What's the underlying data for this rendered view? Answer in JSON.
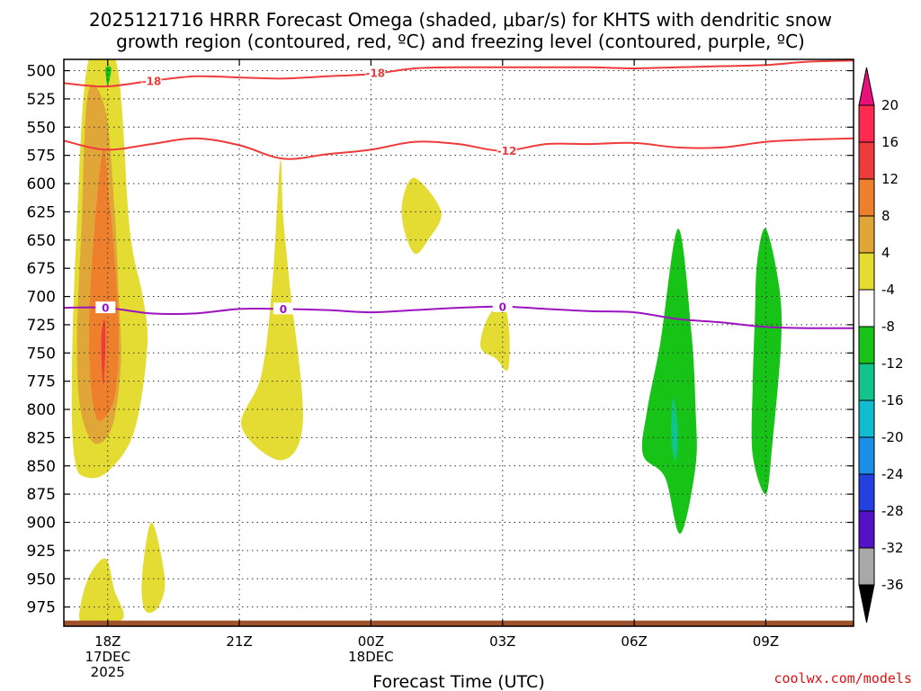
{
  "chart_data": {
    "type": "contour",
    "title_line1": "2025121716 HRRR Forecast Omega (shaded, μbar/s) for KHTS with dendritic snow",
    "title_line2": "growth region (contoured, red, ºC) and freezing level (contoured, purple, ºC)",
    "xlabel": "Forecast Time (UTC)",
    "credit": "coolwx.com/models",
    "credit_color": "#e01010",
    "x_range_hours": [
      -1,
      17
    ],
    "y_range_hpa": [
      992,
      490
    ],
    "y_ticks": [
      500,
      525,
      550,
      575,
      600,
      625,
      650,
      675,
      700,
      725,
      750,
      775,
      800,
      825,
      850,
      875,
      900,
      925,
      950,
      975
    ],
    "x_ticks": [
      {
        "hour": 0,
        "label": "18Z",
        "sub1": "17DEC",
        "sub2": "2025"
      },
      {
        "hour": 3,
        "label": "21Z",
        "sub1": "",
        "sub2": ""
      },
      {
        "hour": 6,
        "label": "00Z",
        "sub1": "18DEC",
        "sub2": ""
      },
      {
        "hour": 9,
        "label": "03Z",
        "sub1": "",
        "sub2": ""
      },
      {
        "hour": 12,
        "label": "06Z",
        "sub1": "",
        "sub2": ""
      },
      {
        "hour": 15,
        "label": "09Z",
        "sub1": "",
        "sub2": ""
      }
    ],
    "colorbar": {
      "labels": [
        "20",
        "16",
        "12",
        "8",
        "4",
        "-4",
        "-8",
        "-12",
        "-16",
        "-20",
        "-24",
        "-28",
        "-32",
        "-36"
      ],
      "colors": [
        "#ff2a4e",
        "#ee3b3b",
        "#ee7f2d",
        "#e0a637",
        "#e4dc32",
        "#ffffff",
        "#16c316",
        "#12c48c",
        "#12bcd0",
        "#1a8fe8",
        "#2440e0",
        "#5312c8",
        "#9412c4",
        "#a8a8a8"
      ],
      "top_color": "#e8107a",
      "bottom_color": "#000000"
    },
    "omega_regions": [
      {
        "name": "omega-plus4-main",
        "color": "#e4dc32",
        "points": [
          [
            -0.45,
            493
          ],
          [
            0.2,
            493
          ],
          [
            0.5,
            640
          ],
          [
            0.8,
            700
          ],
          [
            0.9,
            745
          ],
          [
            0.6,
            820
          ],
          [
            0.0,
            855
          ],
          [
            -0.5,
            860
          ],
          [
            -0.75,
            845
          ],
          [
            -0.82,
            780
          ],
          [
            -0.72,
            650
          ]
        ]
      },
      {
        "name": "omega-plus8-main",
        "color": "#e0a637",
        "points": [
          [
            -0.45,
            520
          ],
          [
            -0.05,
            535
          ],
          [
            0.15,
            620
          ],
          [
            0.25,
            700
          ],
          [
            0.3,
            760
          ],
          [
            0.1,
            815
          ],
          [
            -0.3,
            830
          ],
          [
            -0.62,
            800
          ],
          [
            -0.7,
            740
          ],
          [
            -0.6,
            640
          ]
        ]
      },
      {
        "name": "omega-plus12-main",
        "color": "#ee7f2d",
        "points": [
          [
            -0.1,
            570
          ],
          [
            0.05,
            620
          ],
          [
            0.2,
            690
          ],
          [
            0.25,
            740
          ],
          [
            0.15,
            790
          ],
          [
            -0.2,
            810
          ],
          [
            -0.38,
            780
          ],
          [
            -0.42,
            720
          ],
          [
            -0.3,
            640
          ]
        ]
      },
      {
        "name": "omega-plus16-main",
        "color": "#ee3b3b",
        "points": [
          [
            -0.08,
            720
          ],
          [
            -0.05,
            740
          ],
          [
            -0.1,
            778
          ],
          [
            -0.15,
            740
          ]
        ]
      },
      {
        "name": "omega-plus4-lower-1",
        "color": "#e4dc32",
        "points": [
          [
            -0.35,
            990
          ],
          [
            -0.65,
            985
          ],
          [
            -0.45,
            950
          ],
          [
            -0.05,
            932
          ],
          [
            0.15,
            960
          ],
          [
            0.35,
            985
          ]
        ]
      },
      {
        "name": "omega-plus4-lower-2",
        "color": "#e4dc32",
        "points": [
          [
            1.0,
            900
          ],
          [
            1.3,
            950
          ],
          [
            1.15,
            975
          ],
          [
            0.85,
            978
          ],
          [
            0.78,
            950
          ]
        ]
      },
      {
        "name": "omega-plus4-22z",
        "color": "#e4dc32",
        "points": [
          [
            3.93,
            580
          ],
          [
            3.75,
            690
          ],
          [
            3.5,
            770
          ],
          [
            3.05,
            815
          ],
          [
            3.95,
            845
          ],
          [
            4.45,
            810
          ],
          [
            4.15,
            690
          ],
          [
            4.0,
            630
          ]
        ]
      },
      {
        "name": "omega-plus4-01z",
        "color": "#e4dc32",
        "points": [
          [
            7.0,
            595
          ],
          [
            7.6,
            625
          ],
          [
            7.3,
            650
          ],
          [
            7.0,
            662
          ],
          [
            6.75,
            640
          ],
          [
            6.72,
            615
          ]
        ]
      },
      {
        "name": "omega-plus4-03z",
        "color": "#e4dc32",
        "points": [
          [
            8.85,
            755
          ],
          [
            8.5,
            745
          ],
          [
            8.65,
            720
          ],
          [
            9.0,
            705
          ],
          [
            9.15,
            730
          ],
          [
            9.12,
            765
          ]
        ]
      },
      {
        "name": "omega-minus4-07z",
        "color": "#16c316",
        "points": [
          [
            13.0,
            640
          ],
          [
            13.3,
            730
          ],
          [
            13.4,
            800
          ],
          [
            13.4,
            850
          ],
          [
            13.05,
            910
          ],
          [
            12.7,
            860
          ],
          [
            12.2,
            840
          ],
          [
            12.3,
            800
          ],
          [
            12.6,
            740
          ]
        ]
      },
      {
        "name": "omega-minus8-07z",
        "color": "#12c48c",
        "points": [
          [
            12.9,
            790
          ],
          [
            13.0,
            820
          ],
          [
            12.95,
            845
          ],
          [
            12.85,
            830
          ],
          [
            12.85,
            805
          ]
        ]
      },
      {
        "name": "omega-minus4-09z",
        "color": "#16c316",
        "points": [
          [
            15.0,
            640
          ],
          [
            15.3,
            690
          ],
          [
            15.35,
            740
          ],
          [
            15.15,
            830
          ],
          [
            15.0,
            875
          ],
          [
            14.7,
            840
          ],
          [
            14.7,
            780
          ],
          [
            14.75,
            720
          ],
          [
            14.8,
            670
          ]
        ]
      },
      {
        "name": "omega-minus4-18z-top",
        "color": "#16c316",
        "points": [
          [
            -0.05,
            498
          ],
          [
            0.08,
            498
          ],
          [
            0.0,
            513
          ]
        ]
      }
    ],
    "terrain": {
      "name": "terrain-strip",
      "color": "#a0522d",
      "base_hpa": 992,
      "top_hpa": 987
    },
    "lines": [
      {
        "name": "isotherm-minus18",
        "color": "#ee3b3b",
        "label": "-18",
        "label_positions": [
          [
            1.0,
            509
          ],
          [
            6.1,
            502
          ]
        ],
        "points": [
          [
            -1,
            511
          ],
          [
            -0.05,
            514
          ],
          [
            1.0,
            509
          ],
          [
            2.0,
            505
          ],
          [
            3.0,
            506
          ],
          [
            4.0,
            507
          ],
          [
            5.0,
            505
          ],
          [
            6.0,
            503
          ],
          [
            7.0,
            498
          ],
          [
            8.0,
            497
          ],
          [
            9.0,
            497
          ],
          [
            10.0,
            497
          ],
          [
            11.0,
            497
          ],
          [
            12.0,
            498
          ],
          [
            13.0,
            497
          ],
          [
            14.0,
            496
          ],
          [
            15.0,
            495
          ],
          [
            16.0,
            492
          ],
          [
            17.0,
            491
          ]
        ]
      },
      {
        "name": "isotherm-minus12",
        "color": "#ee3b3b",
        "label": "-12",
        "label_positions": [
          [
            9.1,
            571
          ]
        ],
        "points": [
          [
            -1,
            562
          ],
          [
            -0.05,
            570
          ],
          [
            1.0,
            565
          ],
          [
            2.0,
            560
          ],
          [
            3.0,
            566
          ],
          [
            4.0,
            578
          ],
          [
            5.0,
            574
          ],
          [
            6.0,
            570
          ],
          [
            7.0,
            563
          ],
          [
            8.0,
            565
          ],
          [
            9.0,
            571
          ],
          [
            10.0,
            565
          ],
          [
            11.0,
            565
          ],
          [
            12.0,
            564
          ],
          [
            13.0,
            568
          ],
          [
            14.0,
            568
          ],
          [
            15.0,
            563
          ],
          [
            16.0,
            561
          ],
          [
            17.0,
            560
          ]
        ]
      },
      {
        "name": "freezing-level",
        "color": "#9c13c0",
        "label": "0",
        "label_positions": [
          [
            -0.05,
            710
          ],
          [
            4.0,
            711
          ],
          [
            9.0,
            709
          ]
        ],
        "points": [
          [
            -1,
            710
          ],
          [
            -0.05,
            710
          ],
          [
            1.0,
            715
          ],
          [
            2.0,
            715
          ],
          [
            3.0,
            711
          ],
          [
            4.0,
            711
          ],
          [
            5.0,
            712
          ],
          [
            6.0,
            714
          ],
          [
            7.0,
            712
          ],
          [
            8.0,
            710
          ],
          [
            9.0,
            709
          ],
          [
            10.0,
            711
          ],
          [
            11.0,
            713
          ],
          [
            12.0,
            714
          ],
          [
            13.0,
            720
          ],
          [
            14.0,
            723
          ],
          [
            15.0,
            727
          ],
          [
            16.0,
            728
          ],
          [
            17.0,
            728
          ]
        ]
      }
    ]
  }
}
